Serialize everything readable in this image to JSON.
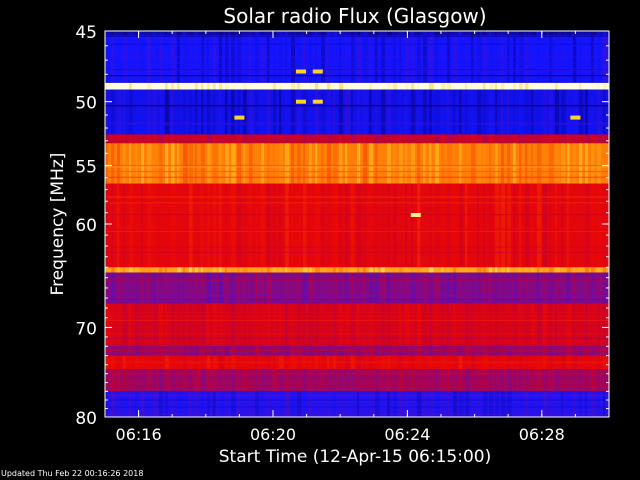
{
  "chart_data": {
    "type": "heatmap",
    "title": "Solar radio Flux (Glasgow)",
    "ylabel": "Frequency [MHz]",
    "xlabel": "Start Time (12-Apr-15 06:15:00)",
    "y_ticks": [
      "45",
      "50",
      "55",
      "60",
      "70",
      "80"
    ],
    "x_ticks": [
      "06:16",
      "06:20",
      "06:24",
      "06:28"
    ],
    "ylim": [
      45,
      80
    ],
    "y_scale": "log",
    "xlim": [
      "06:15:00",
      "06:30:00"
    ],
    "colormap": "blue-red-yellow",
    "bands": [
      {
        "from_mhz": 45.0,
        "to_mhz": 45.4,
        "level": 0.05
      },
      {
        "from_mhz": 45.4,
        "to_mhz": 48.6,
        "level": 0.12
      },
      {
        "from_mhz": 48.6,
        "to_mhz": 49.1,
        "level": 1.0
      },
      {
        "from_mhz": 49.1,
        "to_mhz": 52.5,
        "level": 0.1
      },
      {
        "from_mhz": 52.5,
        "to_mhz": 53.2,
        "level": 0.45
      },
      {
        "from_mhz": 53.2,
        "to_mhz": 56.5,
        "level": 0.8
      },
      {
        "from_mhz": 56.5,
        "to_mhz": 64.0,
        "level": 0.55
      },
      {
        "from_mhz": 64.0,
        "to_mhz": 64.5,
        "level": 0.85
      },
      {
        "from_mhz": 64.5,
        "to_mhz": 67.5,
        "level": 0.32
      },
      {
        "from_mhz": 67.5,
        "to_mhz": 72.0,
        "level": 0.5
      },
      {
        "from_mhz": 72.0,
        "to_mhz": 73.0,
        "level": 0.35
      },
      {
        "from_mhz": 73.0,
        "to_mhz": 74.5,
        "level": 0.55
      },
      {
        "from_mhz": 74.5,
        "to_mhz": 77.0,
        "level": 0.38
      },
      {
        "from_mhz": 77.0,
        "to_mhz": 80.0,
        "level": 0.15
      }
    ],
    "bursts": [
      {
        "time": "06:24:15",
        "mhz": 59.2,
        "level": 0.95
      },
      {
        "time": "06:20:50",
        "mhz": 47.8,
        "level": 0.9
      },
      {
        "time": "06:21:20",
        "mhz": 47.8,
        "level": 0.9
      },
      {
        "time": "06:20:50",
        "mhz": 50.0,
        "level": 0.9
      },
      {
        "time": "06:21:20",
        "mhz": 50.0,
        "level": 0.9
      },
      {
        "time": "06:19:00",
        "mhz": 51.2,
        "level": 0.9
      },
      {
        "time": "06:29:00",
        "mhz": 51.2,
        "level": 0.9
      }
    ]
  },
  "footer": {
    "updated": "Updated Thu Feb 22 00:16:26 2018"
  }
}
